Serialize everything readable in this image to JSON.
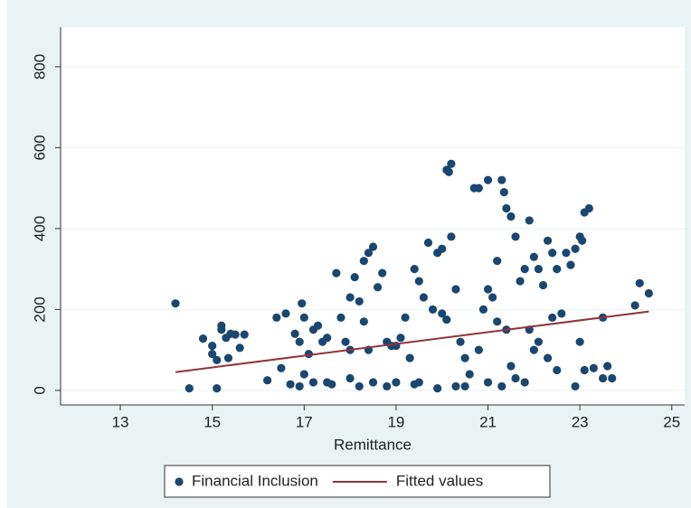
{
  "chart_data": {
    "type": "scatter",
    "xlabel": "Remittance",
    "xlim": [
      11.7,
      25.28
    ],
    "ylim": [
      -36,
      898
    ],
    "xticks": [
      13,
      15,
      17,
      19,
      21,
      23,
      25
    ],
    "yticks": [
      0,
      200,
      400,
      600,
      800
    ],
    "grid": true,
    "series": [
      {
        "name": "Financial Inclusion",
        "type": "scatter",
        "color": "#1a476f",
        "x": [
          14.2,
          14.5,
          15.1,
          14.8,
          15.0,
          15.0,
          15.1,
          15.2,
          15.2,
          15.3,
          15.4,
          15.5,
          15.6,
          15.7,
          15.35,
          16.2,
          16.4,
          16.5,
          16.6,
          16.7,
          16.8,
          16.9,
          16.95,
          17.0,
          16.9,
          17.1,
          17.2,
          17.3,
          17.4,
          17.0,
          17.2,
          17.5,
          17.6,
          17.7,
          17.8,
          17.9,
          18.0,
          18.1,
          18.2,
          18.3,
          18.4,
          18.5,
          18.3,
          18.6,
          18.7,
          18.4,
          18.8,
          18.9,
          18.0,
          18.5,
          18.8,
          19.0,
          19.1,
          19.2,
          19.3,
          19.4,
          19.5,
          19.6,
          19.7,
          19.5,
          19.8,
          19.9,
          20.0,
          20.1,
          20.2,
          20.15,
          20.2,
          20.3,
          20.0,
          20.1,
          19.9,
          20.3,
          20.4,
          20.5,
          20.6,
          20.7,
          20.8,
          20.9,
          21.0,
          21.0,
          21.1,
          21.2,
          21.3,
          21.35,
          21.4,
          21.5,
          21.6,
          21.2,
          21.4,
          21.0,
          21.3,
          21.5,
          21.6,
          21.7,
          21.8,
          21.9,
          22.0,
          22.1,
          22.2,
          22.3,
          22.4,
          22.5,
          22.6,
          22.1,
          22.0,
          22.3,
          22.5,
          22.7,
          22.8,
          22.9,
          23.0,
          23.1,
          23.2,
          23.05,
          23.1,
          23.3,
          23.5,
          23.6,
          23.7,
          23.5,
          22.9,
          24.2,
          24.3,
          24.5,
          20.5,
          21.8,
          17.5,
          18.2,
          19.4,
          20.8,
          21.9,
          22.4,
          23.0,
          19.0,
          18.0
        ],
        "values": [
          215,
          5,
          5,
          128,
          110,
          90,
          75,
          150,
          160,
          130,
          140,
          138,
          105,
          138,
          80,
          25,
          180,
          55,
          190,
          15,
          140,
          120,
          215,
          180,
          10,
          90,
          150,
          160,
          120,
          40,
          20,
          130,
          15,
          290,
          180,
          120,
          230,
          280,
          220,
          170,
          340,
          355,
          320,
          255,
          290,
          100,
          120,
          110,
          30,
          20,
          10,
          20,
          130,
          180,
          80,
          300,
          270,
          230,
          365,
          20,
          200,
          340,
          350,
          545,
          560,
          540,
          380,
          250,
          190,
          175,
          5,
          10,
          120,
          80,
          40,
          500,
          500,
          200,
          520,
          250,
          230,
          320,
          520,
          490,
          450,
          430,
          380,
          170,
          150,
          20,
          10,
          60,
          30,
          270,
          300,
          420,
          330,
          300,
          260,
          370,
          340,
          300,
          190,
          120,
          100,
          80,
          50,
          340,
          310,
          350,
          380,
          440,
          450,
          370,
          50,
          55,
          180,
          60,
          30,
          30,
          10,
          210,
          265,
          240,
          10,
          20,
          20,
          10,
          15,
          100,
          150,
          180,
          120,
          110,
          100
        ]
      },
      {
        "name": "Fitted values",
        "type": "line",
        "color": "#90353b",
        "x": [
          14.2,
          24.5
        ],
        "values": [
          45,
          195
        ]
      }
    ]
  }
}
